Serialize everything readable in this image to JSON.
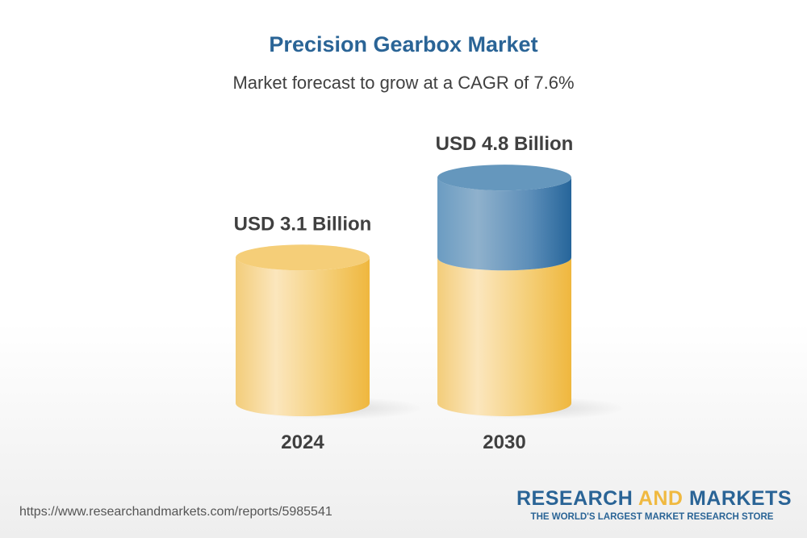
{
  "chart_data": {
    "type": "bar",
    "title": "Precision Gearbox Market",
    "subtitle": "Market forecast to grow at a CAGR of 7.6%",
    "categories": [
      "2024",
      "2030"
    ],
    "values": [
      3.1,
      4.8
    ],
    "data_labels": [
      "USD 3.1 Billion",
      "USD 4.8 Billion"
    ],
    "unit": "USD Billion",
    "style": "3d-cylinder",
    "colors": {
      "base": "#f0b940",
      "growth": "#2a6496",
      "title": "#2a6496",
      "text": "#404040"
    },
    "grid": false
  },
  "footer": {
    "url": "https://www.researchandmarkets.com/reports/5985541",
    "logo_part1": "RESEARCH ",
    "logo_part2": "AND",
    "logo_part3": " MARKETS",
    "tagline": "THE WORLD'S LARGEST MARKET RESEARCH STORE"
  }
}
